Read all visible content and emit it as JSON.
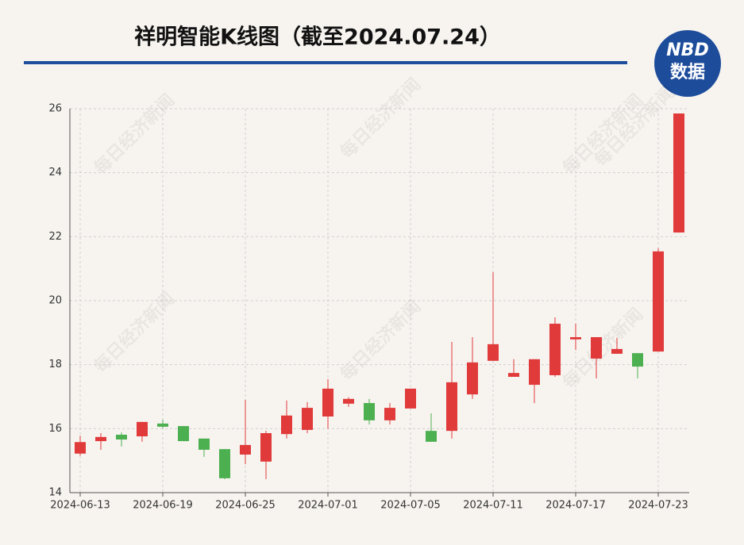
{
  "chart_data": {
    "type": "candlestick",
    "title": "祥明智能K线图（截至2024.07.24）",
    "logo": {
      "top": "NBD",
      "bottom": "数据"
    },
    "watermark": "每日经济新闻",
    "categories": [
      "2024-06-13",
      null,
      null,
      null,
      "2024-06-19",
      null,
      null,
      null,
      "2024-06-25",
      null,
      null,
      null,
      "2024-07-01",
      null,
      null,
      null,
      "2024-07-05",
      null,
      null,
      null,
      "2024-07-11",
      null,
      null,
      null,
      "2024-07-17",
      null,
      null,
      null,
      "2024-07-23",
      null
    ],
    "open": [
      15.22,
      15.61,
      15.81,
      15.76,
      16.16,
      16.08,
      15.69,
      15.36,
      15.19,
      14.97,
      15.83,
      15.96,
      16.38,
      16.78,
      16.8,
      16.26,
      16.63,
      15.93,
      15.93,
      17.07,
      18.12,
      17.62,
      17.37,
      17.67,
      18.79,
      18.19,
      18.34,
      18.36,
      18.41,
      22.13
    ],
    "high": [
      15.78,
      15.86,
      15.88,
      16.21,
      16.28,
      16.08,
      15.69,
      15.36,
      16.9,
      15.93,
      16.88,
      16.83,
      17.55,
      16.98,
      16.93,
      16.8,
      17.25,
      16.48,
      18.71,
      18.86,
      20.89,
      18.17,
      18.17,
      19.48,
      19.28,
      18.86,
      18.84,
      18.36,
      21.64,
      25.85
    ],
    "low": [
      15.15,
      15.34,
      15.44,
      15.59,
      16.01,
      15.61,
      15.12,
      14.42,
      14.89,
      14.42,
      15.69,
      15.86,
      16.0,
      16.68,
      16.13,
      16.13,
      16.63,
      15.59,
      15.69,
      16.93,
      18.12,
      17.62,
      16.8,
      17.62,
      18.46,
      17.57,
      18.34,
      17.57,
      18.41,
      22.13
    ],
    "close": [
      15.58,
      15.74,
      15.66,
      16.21,
      16.06,
      15.61,
      15.34,
      14.45,
      15.49,
      15.86,
      16.41,
      16.65,
      17.25,
      16.93,
      16.26,
      16.65,
      17.25,
      15.59,
      17.45,
      18.07,
      18.64,
      17.74,
      18.17,
      19.28,
      18.86,
      18.86,
      18.49,
      17.94,
      21.54,
      25.85
    ],
    "up_color": "#e03a3a",
    "down_color": "#4caf50",
    "ylim": [
      14,
      26
    ],
    "yticks": [
      14,
      16,
      18,
      20,
      22,
      24,
      26
    ],
    "grid": true
  }
}
